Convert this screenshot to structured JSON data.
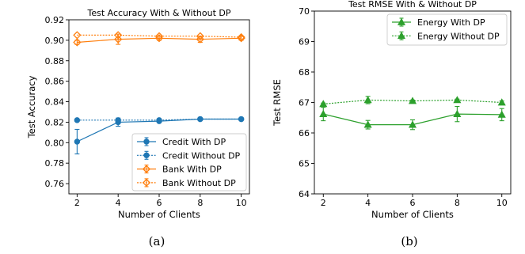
{
  "figure": {
    "caption_a": "(a)",
    "caption_b": "(b)"
  },
  "chart_data": [
    {
      "type": "line",
      "title": "Test Accuracy With & Without DP",
      "xlabel": "Number of Clients",
      "ylabel": "Test Accuracy",
      "x": [
        2,
        4,
        6,
        8,
        10
      ],
      "xlim": [
        1.6,
        10.4
      ],
      "ylim": [
        0.75,
        0.92
      ],
      "xticks": [
        "2",
        "4",
        "6",
        "8",
        "10"
      ],
      "yticks": [
        "0.76",
        "0.78",
        "0.80",
        "0.82",
        "0.84",
        "0.86",
        "0.88",
        "0.90",
        "0.92"
      ],
      "grid": false,
      "legend_position": "lower-right",
      "series": [
        {
          "name": "Credit With DP",
          "color": "#1f77b4",
          "linestyle": "solid",
          "marker": "circle",
          "values": [
            0.801,
            0.82,
            0.821,
            0.823,
            0.823
          ],
          "errors": [
            0.012,
            0.004,
            0.001,
            0.001,
            0.001
          ]
        },
        {
          "name": "Credit Without DP",
          "color": "#1f77b4",
          "linestyle": "dotted",
          "marker": "circle",
          "values": [
            0.822,
            0.822,
            0.822,
            0.823,
            0.823
          ],
          "errors": [
            0.0,
            0.0,
            0.0,
            0.0,
            0.0
          ]
        },
        {
          "name": "Bank With DP",
          "color": "#ff7f0e",
          "linestyle": "solid",
          "marker": "diamond",
          "values": [
            0.898,
            0.901,
            0.902,
            0.901,
            0.902
          ],
          "errors": [
            0.002,
            0.005,
            0.002,
            0.003,
            0.002
          ]
        },
        {
          "name": "Bank Without DP",
          "color": "#ff7f0e",
          "linestyle": "dotted",
          "marker": "diamond",
          "values": [
            0.905,
            0.905,
            0.904,
            0.904,
            0.903
          ],
          "errors": [
            0.0,
            0.0,
            0.0,
            0.0,
            0.0
          ]
        }
      ]
    },
    {
      "type": "line",
      "title": "Test RMSE With & Without DP",
      "xlabel": "Number of Clients",
      "ylabel": "Test RMSE",
      "x": [
        2,
        4,
        6,
        8,
        10
      ],
      "xlim": [
        1.6,
        10.4
      ],
      "ylim": [
        64,
        70
      ],
      "xticks": [
        "2",
        "4",
        "6",
        "8",
        "10"
      ],
      "yticks": [
        "64",
        "65",
        "66",
        "67",
        "68",
        "69",
        "70"
      ],
      "grid": false,
      "legend_position": "top-right",
      "series": [
        {
          "name": "Energy With DP",
          "color": "#2ca02c",
          "linestyle": "solid",
          "marker": "triangle",
          "values": [
            66.62,
            66.27,
            66.27,
            66.62,
            66.6
          ],
          "errors": [
            0.22,
            0.14,
            0.16,
            0.25,
            0.2
          ]
        },
        {
          "name": "Energy Without DP",
          "color": "#2ca02c",
          "linestyle": "dotted",
          "marker": "triangle",
          "values": [
            66.95,
            67.08,
            67.05,
            67.08,
            67.0
          ],
          "errors": [
            0.03,
            0.12,
            0.03,
            0.03,
            0.05
          ]
        }
      ]
    }
  ]
}
